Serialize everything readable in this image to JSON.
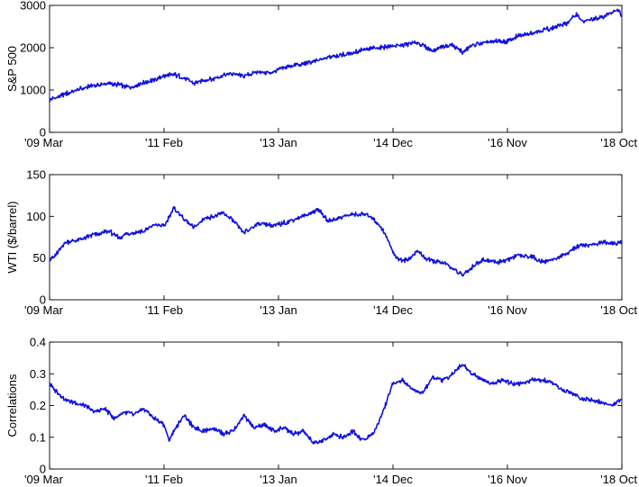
{
  "chart_data": [
    {
      "type": "line",
      "ylabel": "S&P 500",
      "ylim": [
        0,
        3000
      ],
      "yticks": [
        0,
        1000,
        2000,
        3000
      ],
      "ytick_labels": [
        "0",
        "1000",
        "2000",
        "3000"
      ],
      "xlim": [
        "2009-03",
        "2018-10"
      ],
      "xticks": [
        "2009-03",
        "2011-02",
        "2013-01",
        "2014-12",
        "2016-11",
        "2018-10"
      ],
      "xtick_labels": [
        "'09 Mar",
        "'11 Feb",
        "'13 Jan",
        "'14 Dec",
        "'16 Nov",
        "'18 Oct"
      ],
      "line_color": "#1010e0",
      "grid": false,
      "series": [
        {
          "x": [
            "2009-03",
            "2009-06",
            "2009-09",
            "2009-12",
            "2010-03",
            "2010-05",
            "2010-07",
            "2010-09",
            "2010-12",
            "2011-02",
            "2011-04",
            "2011-06",
            "2011-08",
            "2011-10",
            "2011-12",
            "2012-02",
            "2012-04",
            "2012-06",
            "2012-09",
            "2012-11",
            "2013-01",
            "2013-03",
            "2013-06",
            "2013-09",
            "2013-12",
            "2014-03",
            "2014-06",
            "2014-09",
            "2014-12",
            "2015-03",
            "2015-05",
            "2015-08",
            "2015-10",
            "2015-12",
            "2016-02",
            "2016-04",
            "2016-07",
            "2016-09",
            "2016-11",
            "2017-01",
            "2017-04",
            "2017-07",
            "2017-09",
            "2017-11",
            "2018-01",
            "2018-02",
            "2018-04",
            "2018-06",
            "2018-08",
            "2018-09",
            "2018-10"
          ],
          "y": [
            760,
            900,
            1020,
            1110,
            1150,
            1120,
            1060,
            1140,
            1240,
            1330,
            1360,
            1300,
            1160,
            1230,
            1260,
            1350,
            1390,
            1320,
            1440,
            1400,
            1480,
            1560,
            1620,
            1690,
            1810,
            1860,
            1950,
            1990,
            2040,
            2080,
            2110,
            1930,
            2040,
            2060,
            1900,
            2060,
            2130,
            2160,
            2150,
            2270,
            2360,
            2440,
            2500,
            2590,
            2800,
            2620,
            2660,
            2720,
            2840,
            2910,
            2760
          ]
        }
      ]
    },
    {
      "type": "line",
      "ylabel": "WTI ($/barrel)",
      "ylim": [
        0,
        150
      ],
      "yticks": [
        0,
        50,
        100,
        150
      ],
      "ytick_labels": [
        "0",
        "50",
        "100",
        "150"
      ],
      "xlim": [
        "2009-03",
        "2018-10"
      ],
      "xticks": [
        "2009-03",
        "2011-02",
        "2013-01",
        "2014-12",
        "2016-11",
        "2018-10"
      ],
      "xtick_labels": [
        "'09 Mar",
        "'11 Feb",
        "'13 Jan",
        "'14 Dec",
        "'16 Nov",
        "'18 Oct"
      ],
      "line_color": "#1010e0",
      "grid": false,
      "series": [
        {
          "x": [
            "2009-03",
            "2009-04",
            "2009-06",
            "2009-09",
            "2009-12",
            "2010-03",
            "2010-05",
            "2010-07",
            "2010-10",
            "2010-12",
            "2011-02",
            "2011-04",
            "2011-06",
            "2011-08",
            "2011-10",
            "2011-12",
            "2012-02",
            "2012-04",
            "2012-06",
            "2012-09",
            "2012-12",
            "2013-03",
            "2013-06",
            "2013-09",
            "2013-11",
            "2014-02",
            "2014-04",
            "2014-06",
            "2014-08",
            "2014-10",
            "2014-12",
            "2015-01",
            "2015-03",
            "2015-05",
            "2015-07",
            "2015-09",
            "2015-11",
            "2016-02",
            "2016-04",
            "2016-06",
            "2016-09",
            "2016-11",
            "2017-01",
            "2017-04",
            "2017-06",
            "2017-09",
            "2017-11",
            "2018-01",
            "2018-04",
            "2018-06",
            "2018-08",
            "2018-10"
          ],
          "y": [
            48,
            52,
            68,
            72,
            78,
            82,
            74,
            80,
            82,
            90,
            88,
            110,
            97,
            86,
            97,
            100,
            104,
            94,
            80,
            92,
            88,
            94,
            100,
            108,
            94,
            100,
            102,
            103,
            98,
            84,
            58,
            48,
            48,
            58,
            48,
            45,
            42,
            29,
            40,
            48,
            45,
            48,
            53,
            52,
            45,
            50,
            56,
            64,
            66,
            69,
            67,
            70
          ]
        }
      ]
    },
    {
      "type": "line",
      "ylabel": "Correlations",
      "ylim": [
        0,
        0.4
      ],
      "yticks": [
        0,
        0.1,
        0.2,
        0.3,
        0.4
      ],
      "ytick_labels": [
        "0",
        "0.1",
        "0.2",
        "0.3",
        "0.4"
      ],
      "xlim": [
        "2009-03",
        "2018-10"
      ],
      "xticks": [
        "2009-03",
        "2011-02",
        "2013-01",
        "2014-12",
        "2016-11",
        "2018-10"
      ],
      "xtick_labels": [
        "'09 Mar",
        "'11 Feb",
        "'13 Jan",
        "'14 Dec",
        "'16 Nov",
        "'18 Oct"
      ],
      "line_color": "#1010e0",
      "grid": false,
      "series": [
        {
          "x": [
            "2009-03",
            "2009-04",
            "2009-06",
            "2009-08",
            "2009-10",
            "2009-12",
            "2010-02",
            "2010-04",
            "2010-06",
            "2010-08",
            "2010-10",
            "2010-12",
            "2011-02",
            "2011-03",
            "2011-04",
            "2011-06",
            "2011-08",
            "2011-10",
            "2011-12",
            "2012-02",
            "2012-04",
            "2012-06",
            "2012-08",
            "2012-10",
            "2012-12",
            "2013-02",
            "2013-04",
            "2013-06",
            "2013-08",
            "2013-10",
            "2013-12",
            "2014-02",
            "2014-04",
            "2014-06",
            "2014-08",
            "2014-10",
            "2014-12",
            "2015-02",
            "2015-04",
            "2015-06",
            "2015-08",
            "2015-10",
            "2015-12",
            "2016-02",
            "2016-04",
            "2016-06",
            "2016-08",
            "2016-10",
            "2016-12",
            "2017-02",
            "2017-04",
            "2017-06",
            "2017-08",
            "2017-10",
            "2017-12",
            "2018-02",
            "2018-04",
            "2018-06",
            "2018-08",
            "2018-10"
          ],
          "y": [
            0.27,
            0.25,
            0.22,
            0.21,
            0.2,
            0.18,
            0.19,
            0.16,
            0.18,
            0.17,
            0.19,
            0.16,
            0.14,
            0.09,
            0.12,
            0.17,
            0.13,
            0.12,
            0.13,
            0.11,
            0.12,
            0.17,
            0.13,
            0.14,
            0.12,
            0.13,
            0.11,
            0.12,
            0.08,
            0.09,
            0.11,
            0.1,
            0.12,
            0.09,
            0.11,
            0.18,
            0.27,
            0.28,
            0.25,
            0.24,
            0.29,
            0.28,
            0.3,
            0.33,
            0.3,
            0.28,
            0.27,
            0.28,
            0.27,
            0.27,
            0.28,
            0.28,
            0.27,
            0.25,
            0.24,
            0.22,
            0.22,
            0.21,
            0.2,
            0.22
          ]
        }
      ]
    }
  ]
}
